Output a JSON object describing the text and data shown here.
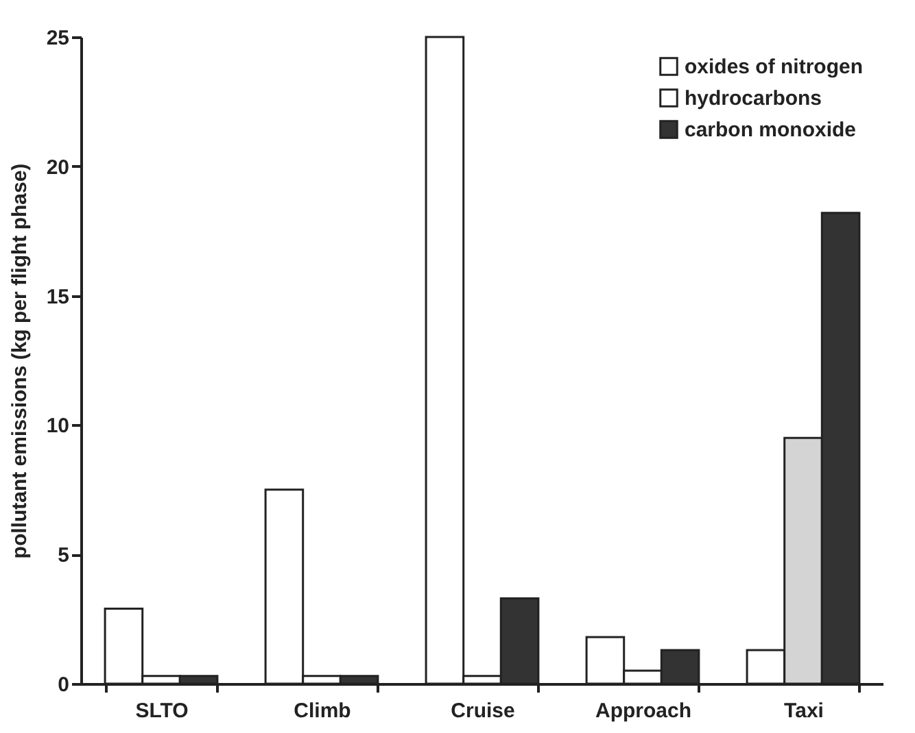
{
  "chart_data": {
    "type": "bar",
    "ylabel": "pollutant emissions (kg per flight phase)",
    "categories": [
      "SLTO",
      "Climb",
      "Cruise",
      "Approach",
      "Taxi"
    ],
    "series": [
      {
        "name": "oxides of nitrogen",
        "color": "#ffffff",
        "values": [
          2.9,
          7.5,
          25,
          1.8,
          1.3
        ]
      },
      {
        "name": "hydrocarbons",
        "color": "#ffffff",
        "colors": [
          "#ffffff",
          "#ffffff",
          "#ffffff",
          "#ffffff",
          "#d4d4d4"
        ],
        "values": [
          0.3,
          0.3,
          0.3,
          0.5,
          9.5
        ]
      },
      {
        "name": "carbon monoxide",
        "color": "#333333",
        "values": [
          0.3,
          0.3,
          3.3,
          1.3,
          18.2
        ]
      }
    ],
    "ylim": [
      0,
      25
    ],
    "yticks": [
      0,
      5,
      10,
      15,
      20,
      25
    ],
    "grid": false,
    "legend": "top right"
  }
}
